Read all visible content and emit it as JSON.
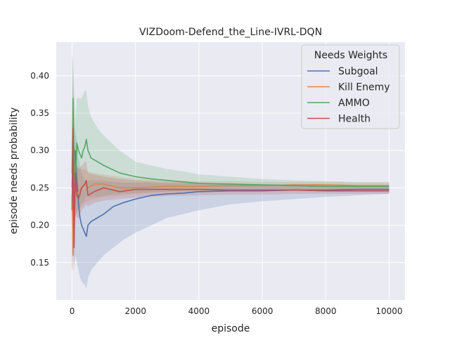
{
  "chart_data": {
    "type": "line",
    "title": "VIZDoom-Defend_the_Line-IVRL-DQN",
    "xlabel": "episode",
    "ylabel": "episode needs probability",
    "xlim": [
      -500,
      10500
    ],
    "ylim": [
      0.1,
      0.445
    ],
    "x_ticks": [
      0,
      2000,
      4000,
      6000,
      8000,
      10000
    ],
    "y_ticks": [
      0.15,
      0.2,
      0.25,
      0.3,
      0.35,
      0.4
    ],
    "grid": true,
    "legend": {
      "title": "Needs Weights",
      "location": "top-right"
    },
    "series": [
      {
        "name": "Subgoal",
        "color": "#4c72b0",
        "x": [
          0,
          30,
          60,
          100,
          150,
          200,
          250,
          300,
          400,
          450,
          500,
          600,
          800,
          1000,
          1300,
          1600,
          2000,
          2500,
          3000,
          3500,
          4000,
          5000,
          6000,
          7000,
          8000,
          9000,
          10000
        ],
        "mean": [
          0.25,
          0.31,
          0.18,
          0.3,
          0.26,
          0.23,
          0.21,
          0.2,
          0.19,
          0.185,
          0.2,
          0.205,
          0.21,
          0.215,
          0.225,
          0.23,
          0.235,
          0.24,
          0.242,
          0.243,
          0.245,
          0.246,
          0.246,
          0.247,
          0.247,
          0.248,
          0.248
        ],
        "lower": [
          0.14,
          0.17,
          0.14,
          0.16,
          0.15,
          0.14,
          0.13,
          0.125,
          0.12,
          0.115,
          0.13,
          0.14,
          0.15,
          0.16,
          0.17,
          0.18,
          0.19,
          0.2,
          0.21,
          0.215,
          0.22,
          0.228,
          0.232,
          0.235,
          0.238,
          0.24,
          0.242
        ],
        "upper": [
          0.36,
          0.42,
          0.3,
          0.33,
          0.31,
          0.29,
          0.28,
          0.27,
          0.26,
          0.255,
          0.26,
          0.26,
          0.26,
          0.26,
          0.258,
          0.257,
          0.257,
          0.257,
          0.256,
          0.256,
          0.256,
          0.256,
          0.255,
          0.255,
          0.255,
          0.254,
          0.254
        ]
      },
      {
        "name": "Kill Enemy",
        "color": "#dd8452",
        "x": [
          0,
          30,
          60,
          100,
          150,
          200,
          300,
          400,
          500,
          700,
          1000,
          1500,
          2000,
          3000,
          4000,
          5000,
          6000,
          7000,
          8000,
          9000,
          10000
        ],
        "mean": [
          0.24,
          0.16,
          0.3,
          0.25,
          0.24,
          0.245,
          0.25,
          0.255,
          0.25,
          0.255,
          0.255,
          0.25,
          0.25,
          0.252,
          0.252,
          0.253,
          0.253,
          0.254,
          0.254,
          0.253,
          0.253
        ],
        "lower": [
          0.14,
          0.14,
          0.2,
          0.21,
          0.215,
          0.22,
          0.225,
          0.23,
          0.232,
          0.235,
          0.238,
          0.24,
          0.242,
          0.244,
          0.245,
          0.246,
          0.247,
          0.248,
          0.248,
          0.248,
          0.248
        ],
        "upper": [
          0.34,
          0.3,
          0.38,
          0.29,
          0.28,
          0.275,
          0.275,
          0.275,
          0.272,
          0.27,
          0.268,
          0.265,
          0.262,
          0.26,
          0.259,
          0.259,
          0.258,
          0.258,
          0.258,
          0.257,
          0.257
        ]
      },
      {
        "name": "AMMO",
        "color": "#55a868",
        "x": [
          0,
          30,
          60,
          100,
          150,
          200,
          250,
          300,
          350,
          400,
          450,
          500,
          600,
          800,
          1000,
          1500,
          2000,
          2500,
          3000,
          3500,
          4000,
          5000,
          6000,
          7000,
          8000,
          9000,
          10000
        ],
        "mean": [
          0.27,
          0.37,
          0.28,
          0.25,
          0.31,
          0.3,
          0.295,
          0.29,
          0.3,
          0.305,
          0.315,
          0.3,
          0.29,
          0.285,
          0.28,
          0.27,
          0.265,
          0.262,
          0.26,
          0.258,
          0.256,
          0.255,
          0.254,
          0.253,
          0.252,
          0.252,
          0.252
        ],
        "lower": [
          0.13,
          0.22,
          0.2,
          0.21,
          0.22,
          0.22,
          0.225,
          0.23,
          0.23,
          0.235,
          0.24,
          0.238,
          0.238,
          0.238,
          0.24,
          0.242,
          0.243,
          0.244,
          0.245,
          0.246,
          0.246,
          0.247,
          0.247,
          0.247,
          0.247,
          0.247,
          0.247
        ],
        "upper": [
          0.43,
          0.42,
          0.38,
          0.34,
          0.37,
          0.37,
          0.37,
          0.37,
          0.375,
          0.38,
          0.38,
          0.36,
          0.345,
          0.33,
          0.32,
          0.3,
          0.285,
          0.28,
          0.275,
          0.272,
          0.268,
          0.265,
          0.262,
          0.26,
          0.259,
          0.258,
          0.258
        ]
      },
      {
        "name": "Health",
        "color": "#c44e52",
        "x": [
          0,
          30,
          60,
          100,
          150,
          200,
          300,
          400,
          450,
          500,
          700,
          1000,
          1500,
          2000,
          3000,
          4000,
          5000,
          6000,
          7000,
          8000,
          9000,
          10000
        ],
        "mean": [
          0.22,
          0.33,
          0.17,
          0.27,
          0.24,
          0.235,
          0.25,
          0.255,
          0.26,
          0.24,
          0.245,
          0.25,
          0.245,
          0.248,
          0.248,
          0.248,
          0.247,
          0.247,
          0.247,
          0.246,
          0.246,
          0.246
        ],
        "lower": [
          0.13,
          0.19,
          0.14,
          0.22,
          0.21,
          0.21,
          0.22,
          0.225,
          0.228,
          0.225,
          0.23,
          0.233,
          0.235,
          0.237,
          0.239,
          0.24,
          0.241,
          0.241,
          0.242,
          0.242,
          0.242,
          0.242
        ],
        "upper": [
          0.31,
          0.42,
          0.27,
          0.31,
          0.28,
          0.275,
          0.28,
          0.285,
          0.285,
          0.27,
          0.268,
          0.265,
          0.262,
          0.26,
          0.258,
          0.257,
          0.255,
          0.254,
          0.253,
          0.253,
          0.252,
          0.252
        ]
      }
    ]
  }
}
